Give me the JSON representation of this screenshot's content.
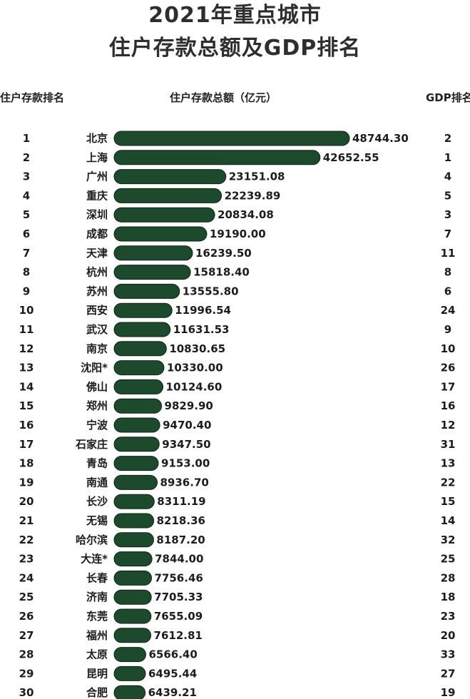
{
  "title_line1": "2021年重点城市",
  "title_line2": "住户存款总额及GDP排名",
  "headers": {
    "rank": "住户存款排名",
    "deposit": "住户存款总额（亿元）",
    "gdp": "GDP排名"
  },
  "colors": {
    "bar": "#1d4a2c",
    "text": "#1c1c1c"
  },
  "chart_data": {
    "type": "bar",
    "orientation": "horizontal",
    "unit": "亿元",
    "rows": [
      {
        "rank": "1",
        "city": "北京",
        "value": 48744.3,
        "label": "48744.30",
        "gdp_rank": "2"
      },
      {
        "rank": "2",
        "city": "上海",
        "value": 42652.55,
        "label": "42652.55",
        "gdp_rank": "1"
      },
      {
        "rank": "3",
        "city": "广州",
        "value": 23151.08,
        "label": "23151.08",
        "gdp_rank": "4"
      },
      {
        "rank": "4",
        "city": "重庆",
        "value": 22239.89,
        "label": "22239.89",
        "gdp_rank": "5"
      },
      {
        "rank": "5",
        "city": "深圳",
        "value": 20834.08,
        "label": "20834.08",
        "gdp_rank": "3"
      },
      {
        "rank": "6",
        "city": "成都",
        "value": 19190.0,
        "label": "19190.00",
        "gdp_rank": "7"
      },
      {
        "rank": "7",
        "city": "天津",
        "value": 16239.5,
        "label": "16239.50",
        "gdp_rank": "11"
      },
      {
        "rank": "8",
        "city": "杭州",
        "value": 15818.4,
        "label": "15818.40",
        "gdp_rank": "8"
      },
      {
        "rank": "9",
        "city": "苏州",
        "value": 13555.8,
        "label": "13555.80",
        "gdp_rank": "6"
      },
      {
        "rank": "10",
        "city": "西安",
        "value": 11996.54,
        "label": "11996.54",
        "gdp_rank": "24"
      },
      {
        "rank": "11",
        "city": "武汉",
        "value": 11631.53,
        "label": "11631.53",
        "gdp_rank": "9"
      },
      {
        "rank": "12",
        "city": "南京",
        "value": 10830.65,
        "label": "10830.65",
        "gdp_rank": "10"
      },
      {
        "rank": "13",
        "city": "沈阳*",
        "value": 10330.0,
        "label": "10330.00",
        "gdp_rank": "26"
      },
      {
        "rank": "14",
        "city": "佛山",
        "value": 10124.6,
        "label": "10124.60",
        "gdp_rank": "17"
      },
      {
        "rank": "15",
        "city": "郑州",
        "value": 9829.9,
        "label": "9829.90",
        "gdp_rank": "16"
      },
      {
        "rank": "16",
        "city": "宁波",
        "value": 9470.4,
        "label": "9470.40",
        "gdp_rank": "12"
      },
      {
        "rank": "17",
        "city": "石家庄",
        "value": 9347.5,
        "label": "9347.50",
        "gdp_rank": "31"
      },
      {
        "rank": "18",
        "city": "青岛",
        "value": 9153.0,
        "label": "9153.00",
        "gdp_rank": "13"
      },
      {
        "rank": "19",
        "city": "南通",
        "value": 8936.7,
        "label": "8936.70",
        "gdp_rank": "22"
      },
      {
        "rank": "20",
        "city": "长沙",
        "value": 8311.19,
        "label": "8311.19",
        "gdp_rank": "15"
      },
      {
        "rank": "21",
        "city": "无锡",
        "value": 8218.36,
        "label": "8218.36",
        "gdp_rank": "14"
      },
      {
        "rank": "22",
        "city": "哈尔滨",
        "value": 8187.2,
        "label": "8187.20",
        "gdp_rank": "32"
      },
      {
        "rank": "23",
        "city": "大连*",
        "value": 7844.0,
        "label": "7844.00",
        "gdp_rank": "25"
      },
      {
        "rank": "24",
        "city": "长春",
        "value": 7756.46,
        "label": "7756.46",
        "gdp_rank": "28"
      },
      {
        "rank": "25",
        "city": "济南",
        "value": 7705.33,
        "label": "7705.33",
        "gdp_rank": "18"
      },
      {
        "rank": "26",
        "city": "东莞",
        "value": 7655.09,
        "label": "7655.09",
        "gdp_rank": "23"
      },
      {
        "rank": "27",
        "city": "福州",
        "value": 7612.81,
        "label": "7612.81",
        "gdp_rank": "20"
      },
      {
        "rank": "28",
        "city": "太原",
        "value": 6566.4,
        "label": "6566.40",
        "gdp_rank": "33"
      },
      {
        "rank": "29",
        "city": "昆明",
        "value": 6495.44,
        "label": "6495.44",
        "gdp_rank": "27"
      },
      {
        "rank": "30",
        "city": "合肥",
        "value": 6439.21,
        "label": "6439.21",
        "gdp_rank": "19"
      }
    ]
  }
}
